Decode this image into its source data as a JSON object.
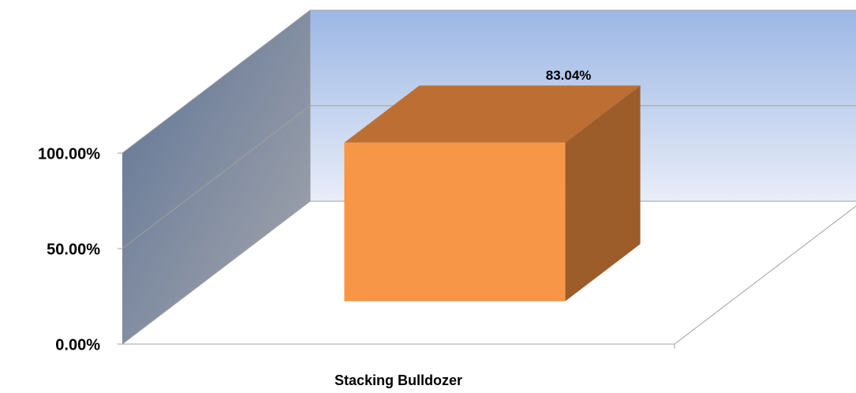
{
  "chart_data": {
    "type": "bar3d",
    "categories": [
      "Stacking Bulldozer"
    ],
    "values": [
      83.04
    ],
    "value_labels": [
      "83.04%"
    ],
    "color": "#f79646",
    "ylim": [
      0,
      100
    ],
    "yticks": [
      {
        "value": 0,
        "label": "0.00%"
      },
      {
        "value": 50,
        "label": "50.00%"
      },
      {
        "value": 100,
        "label": "100.00%"
      }
    ],
    "grid": true
  }
}
